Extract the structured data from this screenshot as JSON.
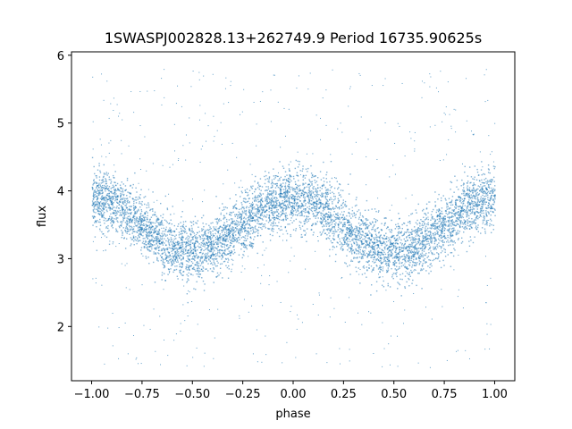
{
  "chart_data": {
    "type": "scatter",
    "title": "1SWASPJ002828.13+262749.9 Period 16735.90625s",
    "xlabel": "phase",
    "ylabel": "flux",
    "xlim": [
      -1.1,
      1.1
    ],
    "ylim": [
      1.2,
      6.05
    ],
    "x_ticks": [
      -1.0,
      -0.75,
      -0.5,
      -0.25,
      0.0,
      0.25,
      0.5,
      0.75,
      1.0
    ],
    "x_tick_labels": [
      "−1.00",
      "−0.75",
      "−0.50",
      "−0.25",
      "0.00",
      "0.25",
      "0.50",
      "0.75",
      "1.00"
    ],
    "y_ticks": [
      2,
      3,
      4,
      5,
      6
    ],
    "y_tick_labels": [
      "2",
      "3",
      "4",
      "5",
      "6"
    ],
    "grid": false,
    "point_color": "#1f77b4",
    "series": [
      {
        "description_curve": "sinusoid, two cycles over phase -1 to 1",
        "x": [
          -1.0,
          -0.75,
          -0.5,
          -0.25,
          0.0,
          0.25,
          0.5,
          0.75,
          1.0
        ],
        "y": [
          3.9,
          3.55,
          3.1,
          3.55,
          3.9,
          3.55,
          3.1,
          3.55,
          3.9
        ],
        "band_halfwidth": 0.4,
        "outlier_range": [
          1.4,
          5.8
        ]
      }
    ]
  }
}
